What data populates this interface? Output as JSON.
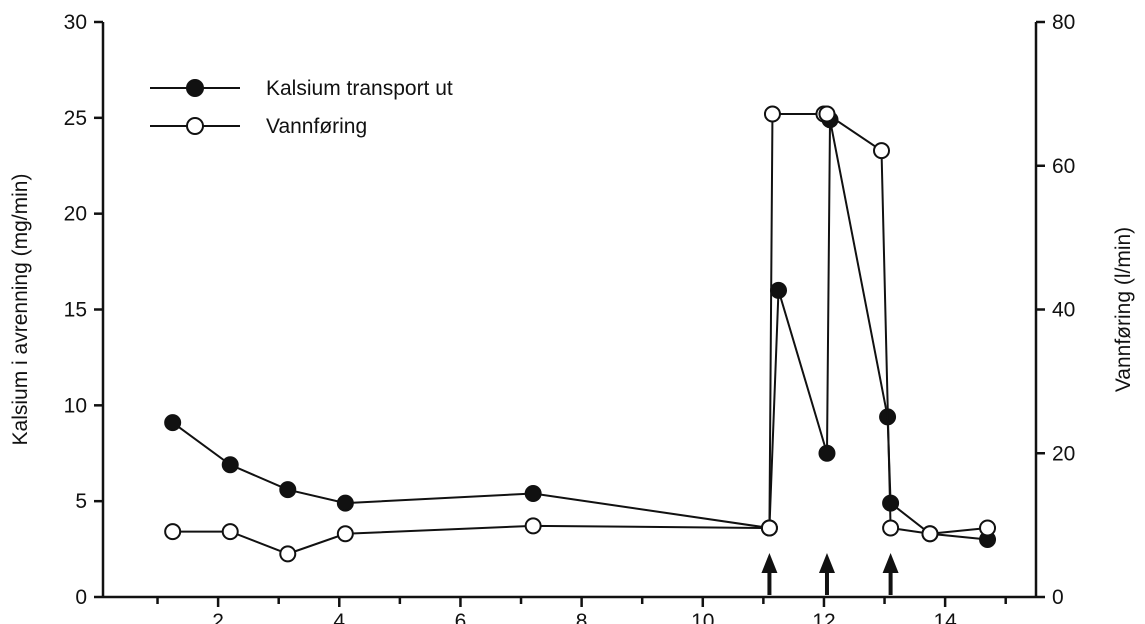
{
  "chart_data": {
    "type": "line",
    "title": "",
    "xlabel": "",
    "ylabel_left": "Kalsium i avrenning (mg/min)",
    "ylabel_right": "Vannføring (l/min)",
    "xlim": [
      0.1,
      15.5
    ],
    "ylim_left": [
      0,
      30
    ],
    "ylim_right": [
      0,
      80
    ],
    "x_ticks": [
      2,
      4,
      6,
      8,
      10,
      12,
      14
    ],
    "x_tick_labels": [
      "2",
      "4",
      "6",
      "8",
      "10",
      "12",
      "14"
    ],
    "y_left_ticks": [
      0,
      5,
      10,
      15,
      20,
      25,
      30
    ],
    "y_left_tick_labels": [
      "0",
      "5",
      "10",
      "15",
      "20",
      "25",
      "30"
    ],
    "y_right_ticks": [
      0,
      20,
      40,
      60,
      80
    ],
    "y_right_tick_labels": [
      "0",
      "20",
      "40",
      "60",
      "80"
    ],
    "legend_position": "top-left",
    "grid": false,
    "series": [
      {
        "name": "Kalsium transport ut",
        "marker": "filled-circle",
        "axis": "left",
        "x": [
          1.25,
          2.2,
          3.15,
          4.1,
          7.2,
          11.1,
          11.25,
          12.05,
          12.1,
          13.05,
          13.1,
          13.75,
          14.7
        ],
        "y": [
          9.1,
          6.9,
          5.6,
          4.9,
          5.4,
          3.6,
          16.0,
          7.5,
          24.9,
          9.4,
          4.9,
          3.3,
          3.0
        ]
      },
      {
        "name": "Vannføring",
        "marker": "open-circle",
        "axis": "right",
        "x": [
          1.25,
          2.2,
          3.15,
          4.1,
          7.2,
          11.1,
          11.15,
          12.0,
          12.05,
          12.95,
          13.1,
          13.75,
          14.7
        ],
        "y": [
          9.1,
          9.1,
          6.0,
          8.8,
          9.9,
          9.6,
          67.2,
          67.2,
          67.2,
          62.1,
          9.6,
          8.8,
          9.6
        ]
      }
    ],
    "annotations": [
      {
        "type": "arrow-up",
        "x": 11.1
      },
      {
        "type": "arrow-up",
        "x": 12.05
      },
      {
        "type": "arrow-up",
        "x": 13.1
      }
    ]
  }
}
